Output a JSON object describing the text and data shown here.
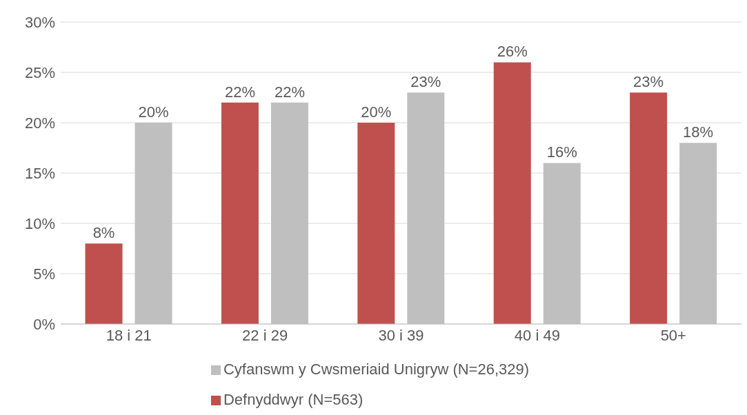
{
  "chart_data": {
    "type": "bar",
    "categories": [
      "18 i 21",
      "22 i 29",
      "30 i 39",
      "40 i 49",
      "50+"
    ],
    "series": [
      {
        "name": "Defnyddwyr (N=563)",
        "color": "#c0504d",
        "values": [
          8,
          22,
          20,
          26,
          23
        ],
        "value_labels": [
          "8%",
          "22%",
          "20%",
          "26%",
          "23%"
        ]
      },
      {
        "name": "Cyfanswm y Cwsmeriaid Unigryw (N=26,329)",
        "color": "#bfbfbf",
        "values": [
          20,
          22,
          23,
          16,
          18
        ],
        "value_labels": [
          "20%",
          "22%",
          "23%",
          "16%",
          "18%"
        ]
      }
    ],
    "ylim": [
      0,
      30
    ],
    "yticks": [
      {
        "value": 0,
        "label": "0%"
      },
      {
        "value": 5,
        "label": "5%"
      },
      {
        "value": 10,
        "label": "10%"
      },
      {
        "value": 15,
        "label": "15%"
      },
      {
        "value": 20,
        "label": "20%"
      },
      {
        "value": 25,
        "label": "25%"
      },
      {
        "value": 30,
        "label": "30%"
      }
    ],
    "grid": "y",
    "legend": "bottom"
  }
}
